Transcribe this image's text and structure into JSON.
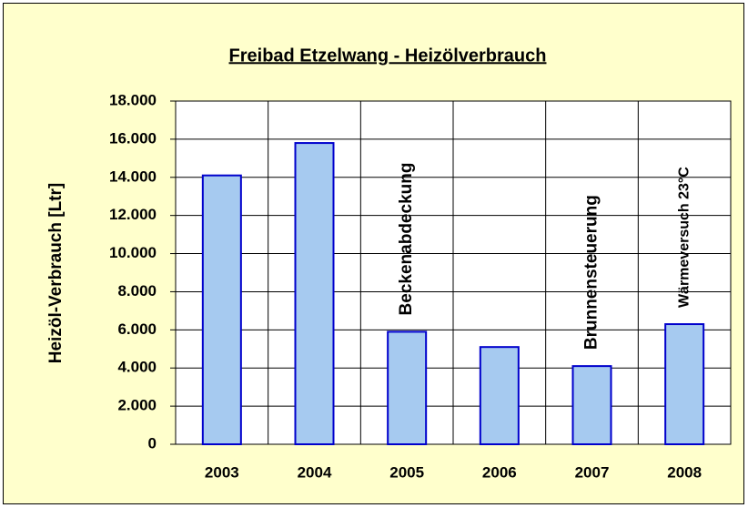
{
  "chart_data": {
    "type": "bar",
    "title": "Freibad Etzelwang - Heizölverbrauch",
    "y_label": "Heizöl-Verbrauch [Ltr]",
    "categories": [
      "2003",
      "2004",
      "2005",
      "2006",
      "2007",
      "2008"
    ],
    "values": [
      14100,
      15800,
      5900,
      5100,
      4100,
      6300
    ],
    "color": "#a6caf0",
    "ylim": [
      0,
      18000
    ],
    "yticks": [
      0,
      {
        "value": 2000,
        "label": "2.000"
      },
      {
        "value": 4000,
        "label": "4.000"
      },
      {
        "value": 6000,
        "label": "6.000"
      },
      {
        "value": 8000,
        "label": "8.000"
      },
      {
        "value": 10000,
        "label": "10.000"
      },
      {
        "value": 12000,
        "label": "12.000"
      },
      {
        "value": 14000,
        "label": "14.000"
      },
      {
        "value": 16000,
        "label": "16.000"
      },
      {
        "value": 18000,
        "label": "18.000"
      }
    ],
    "grid": true,
    "annotations": [
      {
        "text": "Beckenabdeckung",
        "category": "2005"
      },
      {
        "text": "Brunnensteuerung",
        "category": "2007"
      },
      {
        "text": "Wärmeversuch 23°C",
        "category": "2008"
      }
    ]
  }
}
